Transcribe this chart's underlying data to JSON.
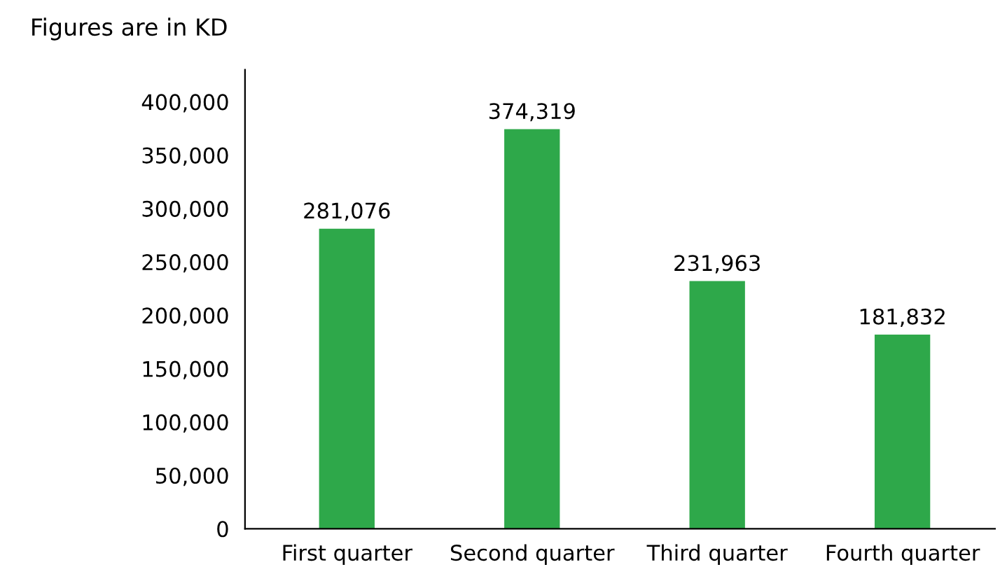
{
  "chart_data": {
    "type": "bar",
    "title": "Figures are in KD",
    "categories": [
      "First quarter",
      "Second quarter",
      "Third quarter",
      "Fourth quarter"
    ],
    "values": [
      281076,
      374319,
      231963,
      181832
    ],
    "color": "#2ea84a",
    "value_labels": [
      "281,076",
      "374,319",
      "231,963",
      "181,832"
    ],
    "ylim": [
      0,
      430000
    ],
    "yticks": [
      {
        "value": 0,
        "label": "0"
      },
      {
        "value": 50000,
        "label": "50,000"
      },
      {
        "value": 100000,
        "label": "100,000"
      },
      {
        "value": 150000,
        "label": "150,000"
      },
      {
        "value": 200000,
        "label": "200,000"
      },
      {
        "value": 250000,
        "label": "250,000"
      },
      {
        "value": 300000,
        "label": "300,000"
      },
      {
        "value": 350000,
        "label": "350,000"
      },
      {
        "value": 400000,
        "label": "400,000"
      }
    ],
    "grid": false,
    "legend": false
  }
}
